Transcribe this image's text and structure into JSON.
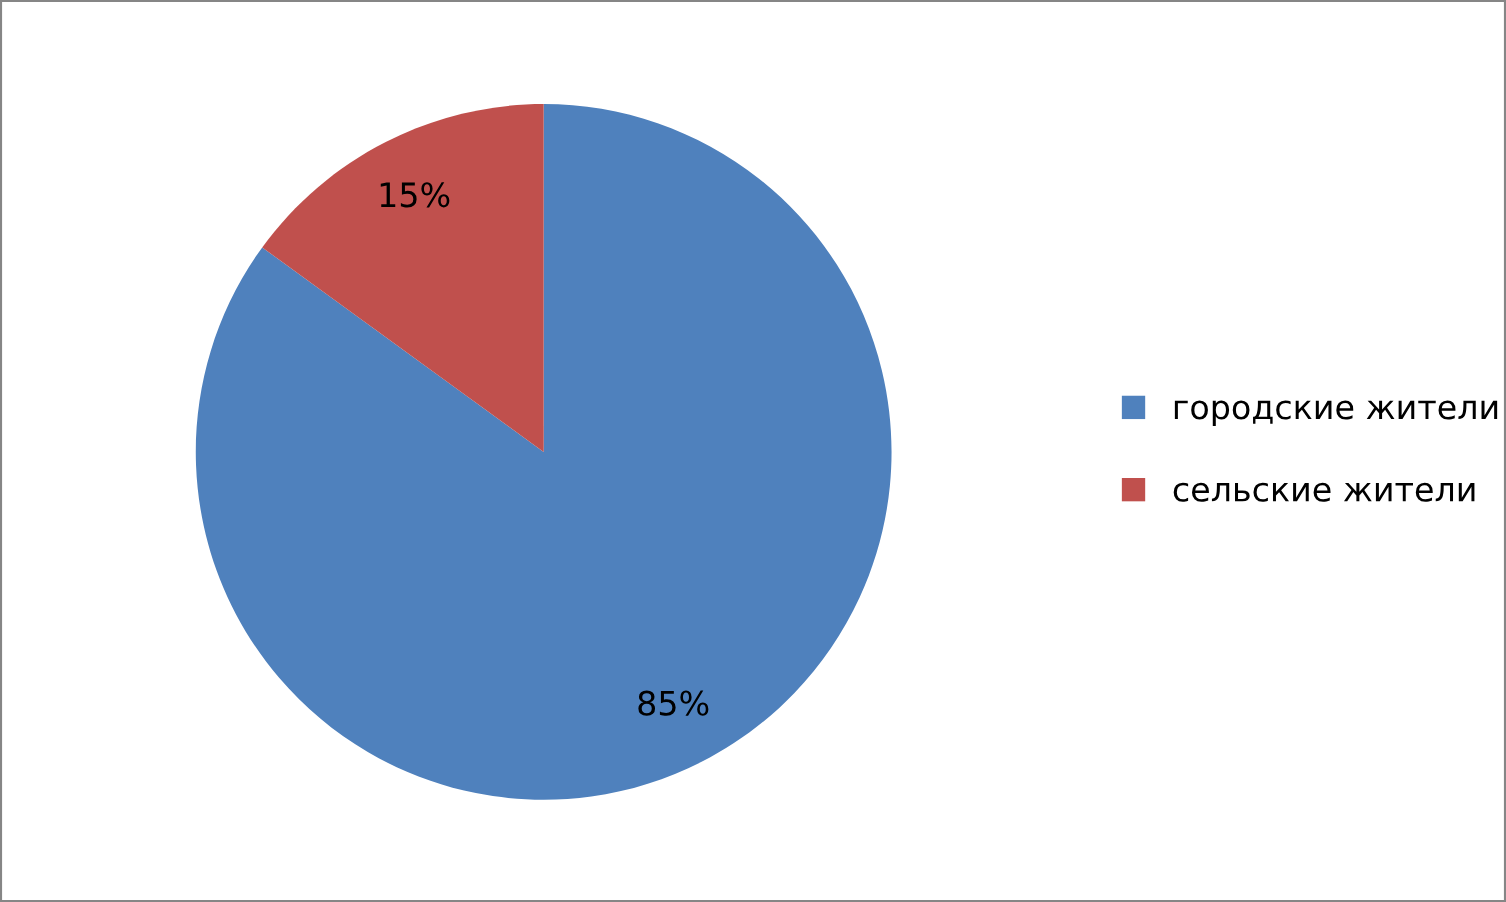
{
  "chart_data": {
    "type": "pie",
    "categories": [
      "городские жители",
      "сельские жители"
    ],
    "values": [
      85,
      15
    ],
    "colors": [
      "#4f81bd",
      "#c0504d"
    ],
    "value_labels": [
      "85%",
      "15%"
    ],
    "legend": "right"
  }
}
